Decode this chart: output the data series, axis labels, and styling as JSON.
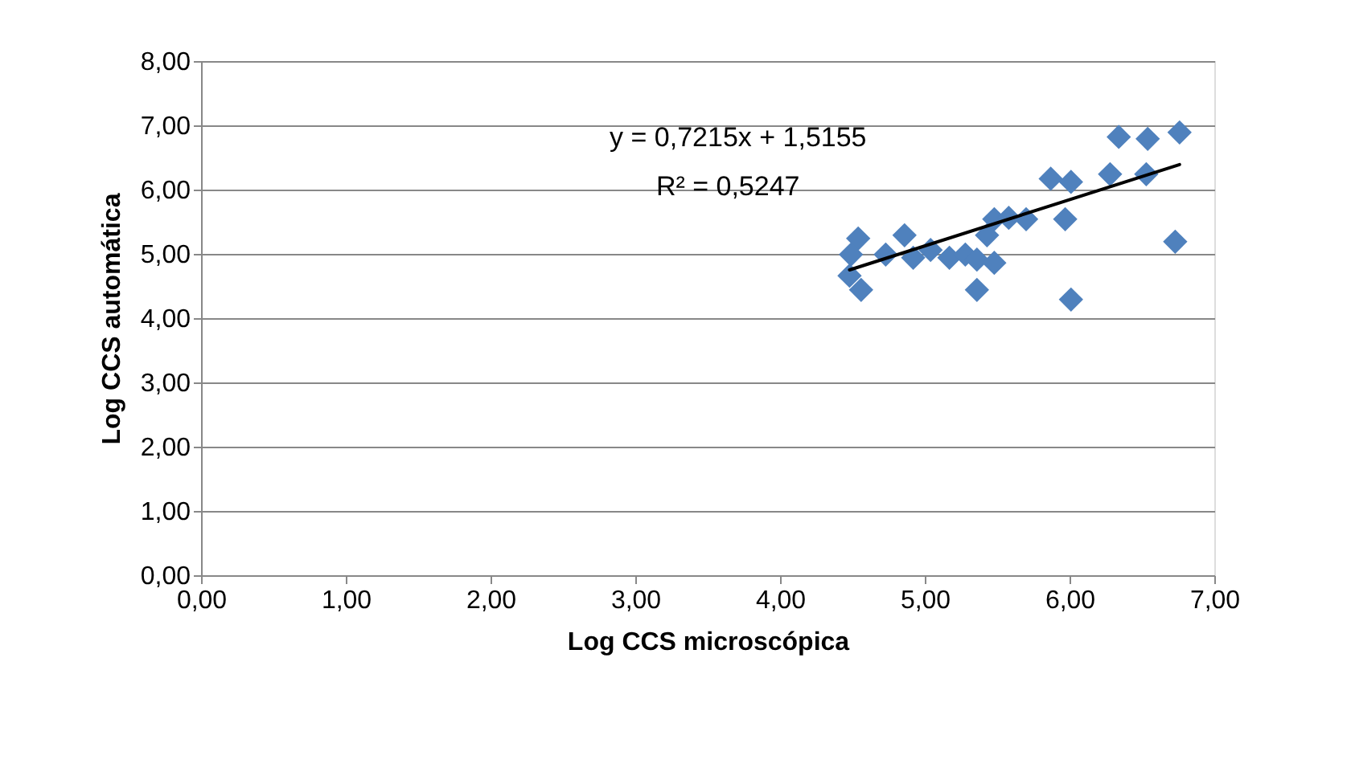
{
  "chart_data": {
    "type": "scatter",
    "xlabel": "Log CCS microscópica",
    "ylabel": "Log CCS automática",
    "annotations": [
      "y = 0,7215x + 1,5155",
      "R² = 0,5247"
    ],
    "series": [
      {
        "type": "scatter",
        "color": "#4f81bd",
        "marker": "diamond",
        "x": [
          4.54,
          4.49,
          4.48,
          4.56,
          4.73,
          4.86,
          4.92,
          5.04,
          5.17,
          5.28,
          5.36,
          5.48,
          5.36,
          5.43,
          5.48,
          5.58,
          5.7,
          5.87,
          6.01,
          5.97,
          6.01,
          6.28,
          6.34,
          6.54,
          6.53,
          6.76,
          6.73
        ],
        "values": [
          5.24,
          4.99,
          4.66,
          4.44,
          4.99,
          5.29,
          4.94,
          5.06,
          4.94,
          4.99,
          4.91,
          4.86,
          4.44,
          5.29,
          5.54,
          5.56,
          5.54,
          6.17,
          6.12,
          5.54,
          4.29,
          6.24,
          6.82,
          6.79,
          6.24,
          6.89,
          5.19
        ]
      },
      {
        "type": "line",
        "color": "#000000",
        "line_style": "solid",
        "x": [
          4.48,
          6.76
        ],
        "values": [
          4.75,
          6.39
        ]
      }
    ],
    "xlim": [
      0,
      7
    ],
    "ylim": [
      0,
      8
    ],
    "xticks": [
      {
        "value": 0,
        "label": "0,00"
      },
      {
        "value": 1,
        "label": "1,00"
      },
      {
        "value": 2,
        "label": "2,00"
      },
      {
        "value": 3,
        "label": "3,00"
      },
      {
        "value": 4,
        "label": "4,00"
      },
      {
        "value": 5,
        "label": "5,00"
      },
      {
        "value": 6,
        "label": "6,00"
      },
      {
        "value": 7,
        "label": "7,00"
      }
    ],
    "yticks": [
      {
        "value": 0,
        "label": "0,00"
      },
      {
        "value": 1,
        "label": "1,00"
      },
      {
        "value": 2,
        "label": "2,00"
      },
      {
        "value": 3,
        "label": "3,00"
      },
      {
        "value": 4,
        "label": "4,00"
      },
      {
        "value": 5,
        "label": "5,00"
      },
      {
        "value": 6,
        "label": "6,00"
      },
      {
        "value": 7,
        "label": "7,00"
      },
      {
        "value": 8,
        "label": "8,00"
      }
    ],
    "grid": "y",
    "legend": false
  }
}
